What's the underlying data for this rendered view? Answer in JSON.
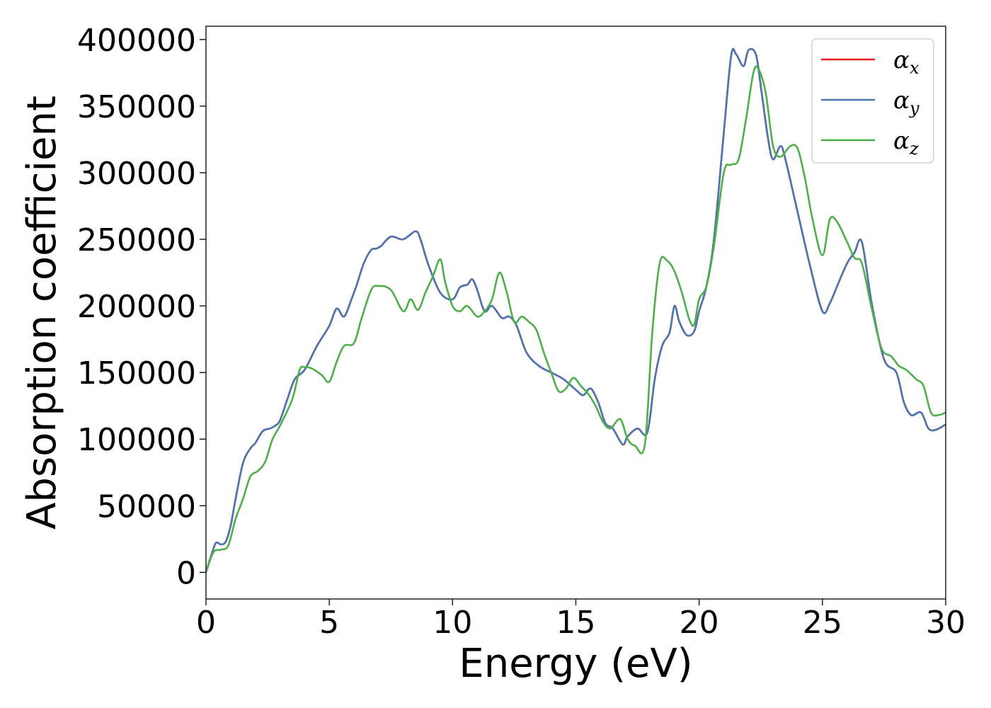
{
  "chart_data": {
    "type": "line",
    "title": "",
    "xlabel": "Energy (eV)",
    "ylabel": "Absorption coefficient",
    "xlim": [
      0,
      30
    ],
    "ylim": [
      -20000,
      410000
    ],
    "xticks": [
      0,
      5,
      10,
      15,
      20,
      25,
      30
    ],
    "xtick_labels": [
      "0",
      "5",
      "10",
      "15",
      "20",
      "25",
      "30"
    ],
    "yticks": [
      0,
      50000,
      100000,
      150000,
      200000,
      250000,
      300000,
      350000,
      400000
    ],
    "ytick_labels": [
      "0",
      "50000",
      "100000",
      "150000",
      "200000",
      "250000",
      "300000",
      "350000",
      "400000"
    ],
    "grid": false,
    "legend_position": "top-right",
    "series": [
      {
        "name": "α",
        "subscript": "x",
        "color": "#e41a1c",
        "x": [
          0,
          0.2,
          0.4,
          0.6,
          0.8,
          1.0,
          1.2,
          1.5,
          1.8,
          2.0,
          2.3,
          2.6,
          2.8,
          3.0,
          3.3,
          3.6,
          4.0,
          4.5,
          5.0,
          5.3,
          5.6,
          5.9,
          6.1,
          6.4,
          6.7,
          6.9,
          7.1,
          7.5,
          8.0,
          8.5,
          8.7,
          9.0,
          9.5,
          10.0,
          10.3,
          10.6,
          10.8,
          11.0,
          11.3,
          11.6,
          12.0,
          12.3,
          12.6,
          13.0,
          13.5,
          14.0,
          14.5,
          15.0,
          15.3,
          15.6,
          15.9,
          16.2,
          16.5,
          16.9,
          17.1,
          17.5,
          17.9,
          18.2,
          18.5,
          18.8,
          19.0,
          19.2,
          19.5,
          19.8,
          20.0,
          20.3,
          20.6,
          21.0,
          21.3,
          21.5,
          21.8,
          22.0,
          22.3,
          22.5,
          22.8,
          23.0,
          23.3,
          23.5,
          24.0,
          24.5,
          25.0,
          25.3,
          25.6,
          26.0,
          26.3,
          26.6,
          27.0,
          27.5,
          28.0,
          28.3,
          28.6,
          29.0,
          29.3,
          29.6,
          30.0
        ],
        "values": [
          0,
          12000,
          22000,
          21000,
          23000,
          35000,
          55000,
          82000,
          93000,
          97000,
          106000,
          108000,
          110000,
          114000,
          130000,
          145000,
          152000,
          170000,
          185000,
          198000,
          192000,
          205000,
          215000,
          232000,
          242000,
          243000,
          245000,
          252000,
          250000,
          256000,
          250000,
          232000,
          210000,
          205000,
          214000,
          216000,
          220000,
          212000,
          196000,
          200000,
          191000,
          192000,
          185000,
          165000,
          155000,
          150000,
          145000,
          137000,
          133000,
          138000,
          128000,
          112000,
          108000,
          96000,
          102000,
          108000,
          105000,
          145000,
          170000,
          180000,
          200000,
          188000,
          178000,
          181000,
          196000,
          215000,
          250000,
          330000,
          388000,
          389000,
          380000,
          392000,
          389000,
          365000,
          325000,
          310000,
          320000,
          310000,
          270000,
          230000,
          196000,
          202000,
          215000,
          232000,
          240000,
          248000,
          202000,
          160000,
          150000,
          128000,
          118000,
          120000,
          108000,
          107000,
          111000
        ]
      },
      {
        "name": "α",
        "subscript": "y",
        "color": "#4a76b2",
        "x": [
          0,
          0.2,
          0.4,
          0.6,
          0.8,
          1.0,
          1.2,
          1.5,
          1.8,
          2.0,
          2.3,
          2.6,
          2.8,
          3.0,
          3.3,
          3.6,
          4.0,
          4.5,
          5.0,
          5.3,
          5.6,
          5.9,
          6.1,
          6.4,
          6.7,
          6.9,
          7.1,
          7.5,
          8.0,
          8.5,
          8.7,
          9.0,
          9.5,
          10.0,
          10.3,
          10.6,
          10.8,
          11.0,
          11.3,
          11.6,
          12.0,
          12.3,
          12.6,
          13.0,
          13.5,
          14.0,
          14.5,
          15.0,
          15.3,
          15.6,
          15.9,
          16.2,
          16.5,
          16.9,
          17.1,
          17.5,
          17.9,
          18.2,
          18.5,
          18.8,
          19.0,
          19.2,
          19.5,
          19.8,
          20.0,
          20.3,
          20.6,
          21.0,
          21.3,
          21.5,
          21.8,
          22.0,
          22.3,
          22.5,
          22.8,
          23.0,
          23.3,
          23.5,
          24.0,
          24.5,
          25.0,
          25.3,
          25.6,
          26.0,
          26.3,
          26.6,
          27.0,
          27.5,
          28.0,
          28.3,
          28.6,
          29.0,
          29.3,
          29.6,
          30.0
        ],
        "values": [
          0,
          12000,
          22000,
          21000,
          23000,
          35000,
          55000,
          82000,
          93000,
          97000,
          106000,
          108000,
          110000,
          114000,
          130000,
          145000,
          152000,
          170000,
          185000,
          198000,
          192000,
          205000,
          215000,
          232000,
          242000,
          243000,
          245000,
          252000,
          250000,
          256000,
          250000,
          232000,
          210000,
          205000,
          214000,
          216000,
          220000,
          212000,
          196000,
          200000,
          191000,
          192000,
          185000,
          165000,
          155000,
          150000,
          145000,
          137000,
          133000,
          138000,
          128000,
          112000,
          108000,
          96000,
          102000,
          108000,
          105000,
          145000,
          170000,
          180000,
          200000,
          188000,
          178000,
          181000,
          196000,
          215000,
          250000,
          330000,
          388000,
          389000,
          380000,
          392000,
          389000,
          365000,
          325000,
          310000,
          320000,
          310000,
          270000,
          230000,
          196000,
          202000,
          215000,
          232000,
          240000,
          248000,
          202000,
          160000,
          150000,
          128000,
          118000,
          120000,
          108000,
          107000,
          111000
        ]
      },
      {
        "name": "α",
        "subscript": "z",
        "color": "#4daf4a",
        "x": [
          0,
          0.3,
          0.6,
          0.9,
          1.2,
          1.5,
          1.8,
          2.1,
          2.4,
          2.7,
          3.0,
          3.5,
          3.8,
          4.0,
          4.3,
          4.7,
          5.0,
          5.3,
          5.6,
          6.0,
          6.3,
          6.7,
          7.0,
          7.5,
          8.0,
          8.3,
          8.6,
          8.9,
          9.2,
          9.5,
          9.7,
          10.0,
          10.3,
          10.6,
          11.0,
          11.3,
          11.6,
          11.9,
          12.2,
          12.5,
          12.8,
          13.1,
          13.4,
          13.7,
          14.0,
          14.3,
          14.6,
          14.9,
          15.2,
          15.5,
          15.8,
          16.1,
          16.4,
          16.8,
          17.1,
          17.4,
          17.8,
          18.1,
          18.4,
          18.7,
          19.0,
          19.3,
          19.6,
          19.8,
          20.0,
          20.3,
          20.6,
          21.0,
          21.3,
          21.6,
          21.9,
          22.2,
          22.4,
          22.7,
          23.0,
          23.3,
          23.7,
          24.0,
          24.3,
          24.6,
          25.0,
          25.3,
          25.6,
          26.0,
          26.3,
          26.6,
          27.0,
          27.4,
          27.8,
          28.1,
          28.4,
          28.8,
          29.1,
          29.4,
          29.7,
          30.0
        ],
        "values": [
          0,
          15000,
          17000,
          20000,
          40000,
          55000,
          72000,
          76000,
          83000,
          100000,
          110000,
          130000,
          152000,
          154000,
          153000,
          148000,
          143000,
          158000,
          170000,
          172000,
          190000,
          212000,
          215000,
          212000,
          196000,
          205000,
          197000,
          210000,
          222000,
          235000,
          218000,
          200000,
          196000,
          200000,
          192000,
          196000,
          205000,
          225000,
          210000,
          188000,
          192000,
          188000,
          182000,
          165000,
          150000,
          136000,
          138000,
          146000,
          140000,
          134000,
          125000,
          113000,
          108000,
          115000,
          100000,
          95000,
          96000,
          180000,
          232000,
          234000,
          226000,
          210000,
          190000,
          186000,
          205000,
          215000,
          245000,
          300000,
          306000,
          310000,
          340000,
          375000,
          378000,
          360000,
          320000,
          312000,
          320000,
          318000,
          295000,
          265000,
          238000,
          265000,
          263000,
          248000,
          236000,
          232000,
          198000,
          168000,
          162000,
          155000,
          152000,
          145000,
          140000,
          120000,
          118000,
          120000
        ]
      }
    ]
  }
}
